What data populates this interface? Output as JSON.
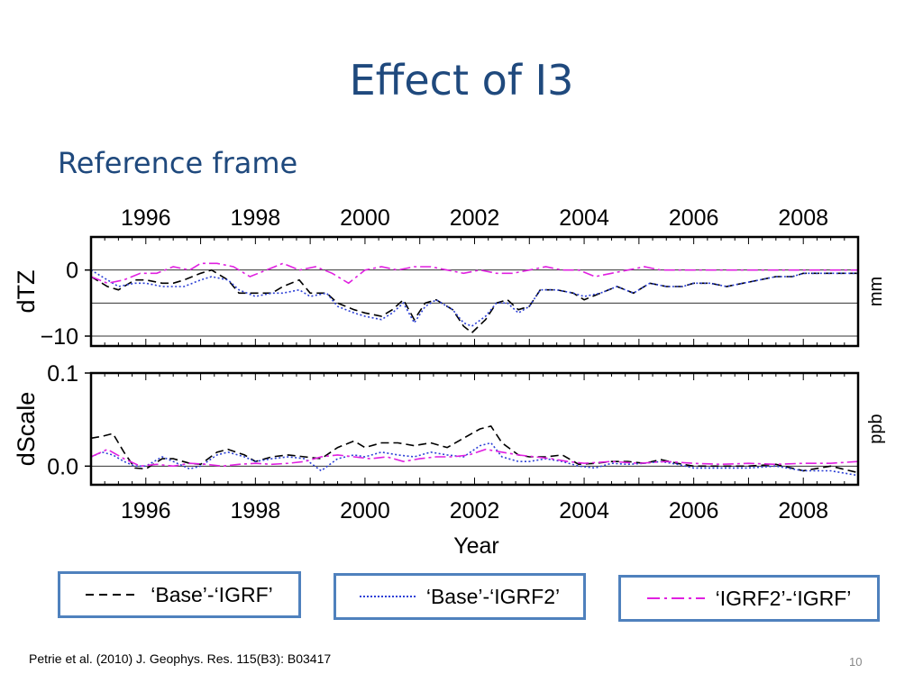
{
  "slide": {
    "title": "Effect of I3",
    "subtitle": "Reference frame",
    "citation": "Petrie et al. (2010) J. Geophys. Res. 115(B3): B03417",
    "page_number": "10"
  },
  "legend": [
    {
      "label": "‘Base’-‘IGRF’",
      "style": "dashed",
      "color": "#000000"
    },
    {
      "label": "‘Base’-‘IGRF2’",
      "style": "dotted",
      "color": "#2b3fd6"
    },
    {
      "label": "‘IGRF2’-‘IGRF’",
      "style": "dashdot",
      "color": "#e020e0"
    }
  ],
  "colors": {
    "title": "#1f497d",
    "legend_border": "#4f81bd"
  },
  "chart_data": [
    {
      "type": "line",
      "xlim": [
        1995.0,
        2009.0
      ],
      "ylim": [
        -11.5,
        5
      ],
      "x_ticks": [
        "1996",
        "1998",
        "2000",
        "2002",
        "2004",
        "2006",
        "2008"
      ],
      "x_tick_values": [
        1996,
        1998,
        2000,
        2002,
        2004,
        2006,
        2008
      ],
      "y_ticks": [
        "0",
        "−10"
      ],
      "y_tick_values": [
        0,
        -10
      ],
      "gridlines_y": [
        0,
        -5,
        -10
      ],
      "ylabel": "dTZ",
      "unit_label": "mm",
      "xlabel": "",
      "series": [
        {
          "name": "‘Base’-‘IGRF’",
          "style": "dashed",
          "color": "#000000",
          "x": [
            1995.0,
            1995.3,
            1995.5,
            1995.8,
            1996.0,
            1996.3,
            1996.5,
            1996.7,
            1997.0,
            1997.2,
            1997.5,
            1997.7,
            1998.0,
            1998.3,
            1998.5,
            1998.8,
            1999.0,
            1999.3,
            1999.5,
            1999.8,
            2000.0,
            2000.3,
            2000.5,
            2000.7,
            2000.9,
            2001.1,
            2001.3,
            2001.6,
            2001.8,
            2001.95,
            2002.2,
            2002.4,
            2002.6,
            2002.8,
            2003.0,
            2003.2,
            2003.5,
            2003.8,
            2004.0,
            2004.3,
            2004.6,
            2004.9,
            2005.2,
            2005.5,
            2005.8,
            2006.0,
            2006.3,
            2006.6,
            2006.9,
            2007.2,
            2007.5,
            2007.8,
            2008.0,
            2008.3,
            2008.6,
            2009.0
          ],
          "values": [
            -1,
            -2.5,
            -3,
            -1.5,
            -1.5,
            -2,
            -2,
            -1.5,
            -0.5,
            0,
            -1.5,
            -3.5,
            -3.5,
            -3.5,
            -2.5,
            -1.5,
            -3.5,
            -3.5,
            -5,
            -6,
            -6.5,
            -7,
            -6,
            -4.5,
            -7.5,
            -5,
            -4.5,
            -6,
            -8.5,
            -9.5,
            -7.5,
            -5,
            -4.5,
            -6,
            -5.5,
            -3,
            -3,
            -3.5,
            -4.5,
            -3.5,
            -2.5,
            -3.5,
            -2,
            -2.5,
            -2.5,
            -2,
            -2,
            -2.5,
            -2,
            -1.5,
            -1,
            -1,
            -0.5,
            -0.5,
            -0.5,
            -0.5
          ]
        },
        {
          "name": "‘Base’-‘IGRF2’",
          "style": "dotted",
          "color": "#2b3fd6",
          "x": [
            1995.0,
            1995.3,
            1995.5,
            1995.8,
            1996.0,
            1996.3,
            1996.5,
            1996.7,
            1997.0,
            1997.2,
            1997.5,
            1997.7,
            1998.0,
            1998.3,
            1998.5,
            1998.8,
            1999.0,
            1999.3,
            1999.5,
            1999.8,
            2000.0,
            2000.3,
            2000.5,
            2000.7,
            2000.9,
            2001.1,
            2001.3,
            2001.6,
            2001.8,
            2001.95,
            2002.2,
            2002.4,
            2002.6,
            2002.8,
            2003.0,
            2003.2,
            2003.5,
            2003.8,
            2004.0,
            2004.3,
            2004.6,
            2004.9,
            2005.2,
            2005.5,
            2005.8,
            2006.0,
            2006.3,
            2006.6,
            2006.9,
            2007.2,
            2007.5,
            2007.8,
            2008.0,
            2008.3,
            2008.6,
            2009.0
          ],
          "values": [
            0,
            -1.5,
            -2.5,
            -2,
            -2,
            -2.5,
            -2.5,
            -2.5,
            -1.5,
            -1,
            -1.5,
            -3,
            -4,
            -3.5,
            -3.5,
            -3,
            -4,
            -3.5,
            -5.5,
            -6.5,
            -7,
            -7.5,
            -6.5,
            -5,
            -8,
            -5.5,
            -4.5,
            -6,
            -8,
            -8.5,
            -7,
            -5,
            -5,
            -6.5,
            -5.5,
            -3,
            -3,
            -3.5,
            -4,
            -3.5,
            -2.5,
            -3.5,
            -2,
            -2.5,
            -2.5,
            -2,
            -2,
            -2.5,
            -2,
            -1.5,
            -1,
            -1,
            -0.5,
            -0.5,
            -0.5,
            -0.5
          ]
        },
        {
          "name": "‘IGRF2’-‘IGRF’",
          "style": "dashdot",
          "color": "#e020e0",
          "x": [
            1995.0,
            1995.3,
            1995.6,
            1995.9,
            1996.2,
            1996.5,
            1996.8,
            1997.0,
            1997.3,
            1997.6,
            1997.9,
            1998.2,
            1998.5,
            1998.8,
            1999.1,
            1999.4,
            1999.7,
            2000.0,
            2000.3,
            2000.6,
            2000.9,
            2001.2,
            2001.5,
            2001.8,
            2002.1,
            2002.4,
            2002.7,
            2003.0,
            2003.3,
            2003.6,
            2003.9,
            2004.2,
            2004.5,
            2004.8,
            2005.1,
            2005.4,
            2005.7,
            2006.0,
            2006.5,
            2007.0,
            2007.5,
            2008.0,
            2008.5,
            2009.0
          ],
          "values": [
            -1,
            -2,
            -1.5,
            -0.5,
            -0.5,
            0.5,
            0,
            1,
            1,
            0.5,
            -1,
            0,
            1,
            0,
            0.5,
            -0.5,
            -2,
            0,
            0.5,
            0,
            0.5,
            0.5,
            0,
            -0.5,
            0,
            -0.5,
            -0.5,
            0,
            0.5,
            0,
            0,
            -1,
            -0.5,
            0,
            0.5,
            0,
            0,
            0,
            0,
            0,
            0,
            0,
            0,
            0
          ]
        }
      ]
    },
    {
      "type": "line",
      "xlim": [
        1995.0,
        2009.0
      ],
      "ylim": [
        -0.02,
        0.1
      ],
      "x_ticks": [
        "1996",
        "1998",
        "2000",
        "2002",
        "2004",
        "2006",
        "2008"
      ],
      "x_tick_values": [
        1996,
        1998,
        2000,
        2002,
        2004,
        2006,
        2008
      ],
      "y_ticks": [
        "0.0",
        "0.1"
      ],
      "y_tick_values": [
        0.0,
        0.1
      ],
      "gridlines_y": [
        0.0
      ],
      "ylabel": "dScale",
      "unit_label": "ppb",
      "xlabel": "Year",
      "series": [
        {
          "name": "‘Base’-‘IGRF’",
          "style": "dashed",
          "color": "#000000",
          "x": [
            1995.0,
            1995.2,
            1995.4,
            1995.6,
            1995.8,
            1996.0,
            1996.3,
            1996.5,
            1996.8,
            1997.0,
            1997.3,
            1997.5,
            1997.8,
            1998.0,
            1998.3,
            1998.6,
            1998.9,
            1999.2,
            1999.5,
            1999.8,
            2000.0,
            2000.3,
            2000.6,
            2000.9,
            2001.2,
            2001.5,
            2001.8,
            2002.1,
            2002.3,
            2002.5,
            2002.8,
            2003.0,
            2003.3,
            2003.6,
            2003.9,
            2004.2,
            2004.5,
            2004.8,
            2005.1,
            2005.4,
            2005.7,
            2006.0,
            2006.5,
            2007.0,
            2007.5,
            2008.0,
            2008.5,
            2009.0
          ],
          "values": [
            0.03,
            0.032,
            0.035,
            0.015,
            -0.002,
            -0.003,
            0.008,
            0.008,
            0.003,
            0.002,
            0.015,
            0.018,
            0.012,
            0.005,
            0.01,
            0.012,
            0.01,
            0.008,
            0.02,
            0.027,
            0.02,
            0.025,
            0.025,
            0.022,
            0.025,
            0.02,
            0.03,
            0.04,
            0.043,
            0.025,
            0.012,
            0.01,
            0.01,
            0.012,
            0.002,
            0.003,
            0.005,
            0.005,
            0.003,
            0.007,
            0.003,
            0.0,
            0.0,
            0.0,
            0.002,
            -0.005,
            0.0,
            -0.007
          ]
        },
        {
          "name": "‘Base’-‘IGRF2’",
          "style": "dotted",
          "color": "#2b3fd6",
          "x": [
            1995.0,
            1995.2,
            1995.4,
            1995.6,
            1995.8,
            1996.0,
            1996.3,
            1996.5,
            1996.8,
            1997.0,
            1997.3,
            1997.5,
            1997.8,
            1998.0,
            1998.3,
            1998.6,
            1998.9,
            1999.2,
            1999.5,
            1999.8,
            2000.0,
            2000.3,
            2000.6,
            2000.9,
            2001.2,
            2001.5,
            2001.8,
            2002.1,
            2002.3,
            2002.5,
            2002.8,
            2003.0,
            2003.3,
            2003.6,
            2003.9,
            2004.2,
            2004.5,
            2004.8,
            2005.1,
            2005.4,
            2005.7,
            2006.0,
            2006.5,
            2007.0,
            2007.5,
            2008.0,
            2008.5,
            2009.0
          ],
          "values": [
            0.01,
            0.015,
            0.012,
            0.005,
            0.0,
            0.0,
            0.01,
            0.005,
            -0.003,
            0.0,
            0.012,
            0.015,
            0.01,
            0.005,
            0.008,
            0.01,
            0.008,
            -0.005,
            0.008,
            0.012,
            0.01,
            0.015,
            0.012,
            0.01,
            0.015,
            0.012,
            0.01,
            0.022,
            0.025,
            0.01,
            0.005,
            0.005,
            0.008,
            0.005,
            0.0,
            -0.002,
            0.003,
            0.002,
            0.003,
            0.005,
            0.002,
            -0.002,
            -0.002,
            -0.002,
            0.0,
            -0.005,
            -0.005,
            -0.01
          ]
        },
        {
          "name": "‘IGRF2’-‘IGRF’",
          "style": "dashdot",
          "color": "#e020e0",
          "x": [
            1995.0,
            1995.3,
            1995.6,
            1995.9,
            1996.2,
            1996.5,
            1996.8,
            1997.1,
            1997.4,
            1997.7,
            1998.0,
            1998.3,
            1998.6,
            1998.9,
            1999.2,
            1999.5,
            1999.8,
            2000.1,
            2000.4,
            2000.7,
            2001.0,
            2001.3,
            2001.6,
            2001.9,
            2002.2,
            2002.5,
            2002.8,
            2003.1,
            2003.4,
            2003.7,
            2004.0,
            2004.5,
            2005.0,
            2005.5,
            2006.0,
            2006.5,
            2007.0,
            2007.5,
            2008.0,
            2008.5,
            2009.0
          ],
          "values": [
            0.01,
            0.018,
            0.008,
            0.0,
            0.002,
            0.0,
            0.003,
            0.002,
            0.0,
            0.002,
            0.003,
            0.002,
            0.003,
            0.005,
            0.01,
            0.012,
            0.01,
            0.008,
            0.01,
            0.005,
            0.008,
            0.01,
            0.01,
            0.012,
            0.018,
            0.015,
            0.012,
            0.01,
            0.008,
            0.005,
            0.003,
            0.005,
            0.003,
            0.005,
            0.003,
            0.002,
            0.003,
            0.002,
            0.003,
            0.003,
            0.005
          ]
        }
      ]
    }
  ]
}
